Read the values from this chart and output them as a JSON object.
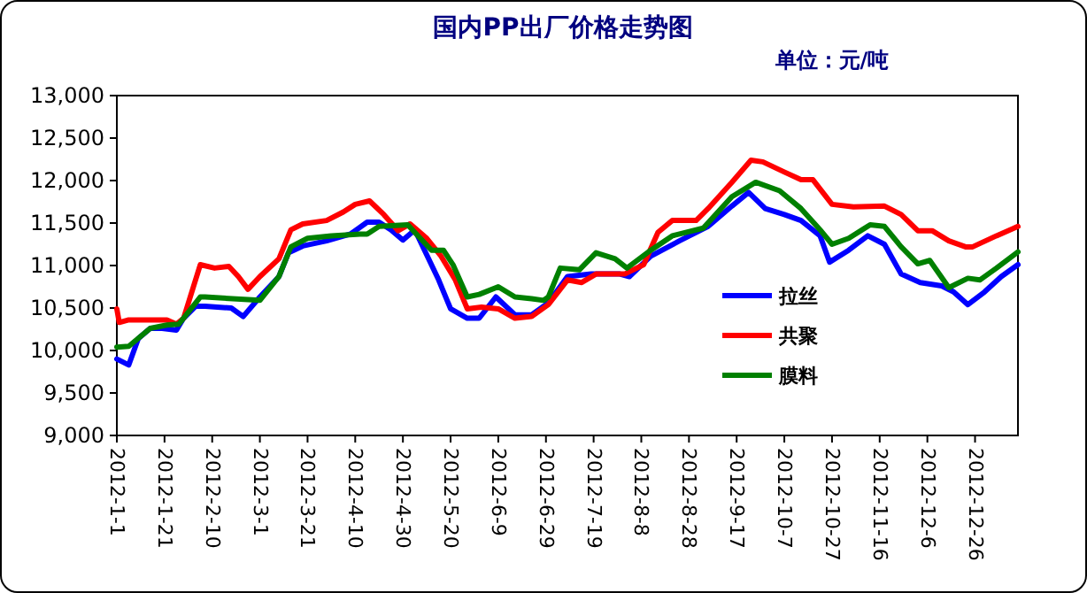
{
  "chart_data": {
    "type": "line",
    "title": "国内PP出厂价格走势图",
    "subtitle": "单位：元/吨",
    "xlim": [
      "2012-01-01",
      "2013-01-13"
    ],
    "xticks": [
      {
        "value": "2012-01-01",
        "label": "2012-1-1"
      },
      {
        "value": "2012-01-21",
        "label": "2012-1-21"
      },
      {
        "value": "2012-02-10",
        "label": "2012-2-10"
      },
      {
        "value": "2012-03-01",
        "label": "2012-3-1"
      },
      {
        "value": "2012-03-21",
        "label": "2012-3-21"
      },
      {
        "value": "2012-04-10",
        "label": "2012-4-10"
      },
      {
        "value": "2012-04-30",
        "label": "2012-4-30"
      },
      {
        "value": "2012-05-20",
        "label": "2012-5-20"
      },
      {
        "value": "2012-06-09",
        "label": "2012-6-9"
      },
      {
        "value": "2012-06-29",
        "label": "2012-6-29"
      },
      {
        "value": "2012-07-19",
        "label": "2012-7-19"
      },
      {
        "value": "2012-08-08",
        "label": "2012-8-8"
      },
      {
        "value": "2012-08-28",
        "label": "2012-8-28"
      },
      {
        "value": "2012-09-17",
        "label": "2012-9-17"
      },
      {
        "value": "2012-10-07",
        "label": "2012-10-7"
      },
      {
        "value": "2012-10-27",
        "label": "2012-10-27"
      },
      {
        "value": "2012-11-16",
        "label": "2012-11-16"
      },
      {
        "value": "2012-12-06",
        "label": "2012-12-6"
      },
      {
        "value": "2012-12-26",
        "label": "2012-12-26"
      }
    ],
    "ylim": [
      9000,
      13000
    ],
    "yticks": [
      {
        "value": 9000,
        "label": "9,000"
      },
      {
        "value": 9500,
        "label": "9,500"
      },
      {
        "value": 10000,
        "label": "10,000"
      },
      {
        "value": 10500,
        "label": "10,500"
      },
      {
        "value": 11000,
        "label": "11,000"
      },
      {
        "value": 11500,
        "label": "11,500"
      },
      {
        "value": 12000,
        "label": "12,000"
      },
      {
        "value": 12500,
        "label": "12,500"
      },
      {
        "value": 13000,
        "label": "13,000"
      }
    ],
    "grid": false,
    "legend": "bottom right",
    "series": [
      {
        "name": "拉丝",
        "color": "#0000ff",
        "x": [
          "2012-01-01",
          "2012-01-06",
          "2012-01-10",
          "2012-01-15",
          "2012-01-20",
          "2012-01-26",
          "2012-01-29",
          "2012-02-03",
          "2012-02-07",
          "2012-02-18",
          "2012-02-23",
          "2012-03-01",
          "2012-03-09",
          "2012-03-13",
          "2012-03-19",
          "2012-03-29",
          "2012-04-08",
          "2012-04-15",
          "2012-04-20",
          "2012-04-25",
          "2012-04-30",
          "2012-05-05",
          "2012-05-15",
          "2012-05-20",
          "2012-05-27",
          "2012-06-01",
          "2012-06-08",
          "2012-06-16",
          "2012-06-23",
          "2012-06-30",
          "2012-07-08",
          "2012-07-18",
          "2012-07-30",
          "2012-08-03",
          "2012-08-12",
          "2012-08-24",
          "2012-09-05",
          "2012-09-15",
          "2012-09-22",
          "2012-09-29",
          "2012-10-07",
          "2012-10-14",
          "2012-10-22",
          "2012-10-26",
          "2012-11-03",
          "2012-11-11",
          "2012-11-18",
          "2012-11-25",
          "2012-12-03",
          "2012-12-12",
          "2012-12-17",
          "2012-12-23",
          "2012-12-30",
          "2013-01-06",
          "2013-01-13"
        ],
        "values": [
          9900,
          9830,
          10140,
          10260,
          10260,
          10240,
          10380,
          10520,
          10520,
          10500,
          10400,
          10630,
          10870,
          11150,
          11230,
          11290,
          11370,
          11510,
          11510,
          11420,
          11300,
          11420,
          10830,
          10490,
          10380,
          10380,
          10630,
          10420,
          10420,
          10560,
          10870,
          10900,
          10900,
          10870,
          11110,
          11290,
          11460,
          11700,
          11860,
          11670,
          11600,
          11530,
          11350,
          11040,
          11180,
          11350,
          11250,
          10900,
          10800,
          10760,
          10690,
          10540,
          10690,
          10870,
          11010
        ]
      },
      {
        "name": "共聚",
        "color": "#ff0000",
        "x": [
          "2012-01-01",
          "2012-01-02",
          "2012-01-06",
          "2012-01-22",
          "2012-01-26",
          "2012-01-29",
          "2012-02-05",
          "2012-02-11",
          "2012-02-17",
          "2012-02-21",
          "2012-02-25",
          "2012-03-01",
          "2012-03-09",
          "2012-03-14",
          "2012-03-19",
          "2012-03-29",
          "2012-04-05",
          "2012-04-10",
          "2012-04-16",
          "2012-04-22",
          "2012-04-28",
          "2012-05-03",
          "2012-05-10",
          "2012-05-16",
          "2012-05-22",
          "2012-05-27",
          "2012-06-02",
          "2012-06-09",
          "2012-06-16",
          "2012-06-23",
          "2012-06-30",
          "2012-07-08",
          "2012-07-14",
          "2012-07-20",
          "2012-08-01",
          "2012-08-09",
          "2012-08-15",
          "2012-08-21",
          "2012-08-31",
          "2012-09-05",
          "2012-09-15",
          "2012-09-23",
          "2012-09-28",
          "2012-10-07",
          "2012-10-14",
          "2012-10-19",
          "2012-10-27",
          "2012-11-05",
          "2012-11-18",
          "2012-11-25",
          "2012-12-02",
          "2012-12-08",
          "2012-12-15",
          "2012-12-22",
          "2012-12-25",
          "2013-01-04",
          "2013-01-13"
        ],
        "values": [
          10490,
          10330,
          10360,
          10360,
          10310,
          10380,
          11010,
          10970,
          10990,
          10870,
          10720,
          10870,
          11080,
          11420,
          11490,
          11530,
          11630,
          11720,
          11760,
          11600,
          11410,
          11490,
          11320,
          11110,
          10830,
          10490,
          10510,
          10490,
          10380,
          10400,
          10540,
          10830,
          10800,
          10900,
          10900,
          11010,
          11390,
          11530,
          11530,
          11670,
          11980,
          12240,
          12220,
          12100,
          12010,
          12010,
          11720,
          11690,
          11700,
          11600,
          11410,
          11410,
          11290,
          11220,
          11220,
          11350,
          11460
        ]
      },
      {
        "name": "膜料",
        "color": "#008000",
        "x": [
          "2012-01-01",
          "2012-01-06",
          "2012-01-15",
          "2012-01-22",
          "2012-01-27",
          "2012-02-05",
          "2012-02-07",
          "2012-03-01",
          "2012-03-09",
          "2012-03-14",
          "2012-03-21",
          "2012-03-31",
          "2012-04-12",
          "2012-04-15",
          "2012-04-20",
          "2012-05-02",
          "2012-05-04",
          "2012-05-12",
          "2012-05-17",
          "2012-05-21",
          "2012-05-27",
          "2012-06-01",
          "2012-06-09",
          "2012-06-16",
          "2012-06-23",
          "2012-06-28",
          "2012-06-30",
          "2012-07-05",
          "2012-07-13",
          "2012-07-20",
          "2012-07-28",
          "2012-08-02",
          "2012-08-12",
          "2012-08-21",
          "2012-09-03",
          "2012-09-15",
          "2012-09-25",
          "2012-10-05",
          "2012-10-14",
          "2012-10-22",
          "2012-10-27",
          "2012-11-03",
          "2012-11-12",
          "2012-11-18",
          "2012-11-25",
          "2012-12-02",
          "2012-12-07",
          "2012-12-15",
          "2012-12-23",
          "2012-12-28",
          "2013-01-04",
          "2013-01-13"
        ],
        "values": [
          10040,
          10050,
          10260,
          10300,
          10310,
          10630,
          10630,
          10590,
          10870,
          11220,
          11320,
          11350,
          11370,
          11370,
          11460,
          11480,
          11420,
          11180,
          11180,
          11010,
          10630,
          10660,
          10750,
          10630,
          10610,
          10590,
          10630,
          10970,
          10950,
          11150,
          11080,
          10970,
          11180,
          11350,
          11440,
          11810,
          11980,
          11880,
          11670,
          11420,
          11250,
          11320,
          11480,
          11460,
          11220,
          11020,
          11060,
          10740,
          10850,
          10830,
          10970,
          11160
        ]
      }
    ]
  }
}
